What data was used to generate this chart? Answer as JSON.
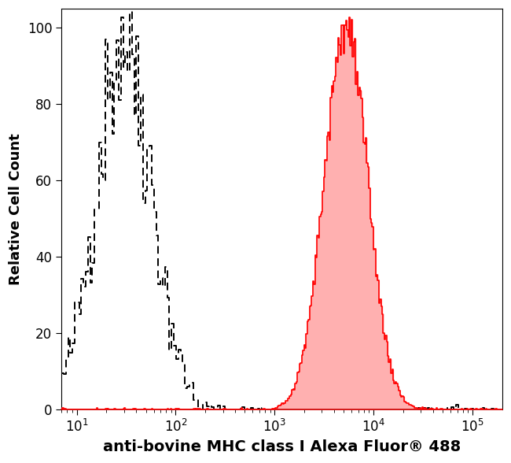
{
  "xlabel": "anti-bovine MHC class I Alexa Fluor® 488",
  "ylabel": "Relative Cell Count",
  "xlim_log": [
    0.845,
    5.301
  ],
  "ylim": [
    0,
    105
  ],
  "yticks": [
    0,
    20,
    40,
    60,
    80,
    100
  ],
  "background_color": "#ffffff",
  "isotype_color": "#000000",
  "isotype_peak_x_log": 1.48,
  "isotype_peak_y": 98,
  "isotype_sigma_log": 0.28,
  "antibody_color": "#ff0000",
  "antibody_fill_color": "#ffb0b0",
  "antibody_peak_x_log": 3.72,
  "antibody_peak_y": 100,
  "antibody_sigma_log": 0.22,
  "xlabel_fontsize": 14,
  "ylabel_fontsize": 13,
  "tick_fontsize": 12,
  "noise_seed_iso": 42,
  "noise_seed_ab": 99
}
